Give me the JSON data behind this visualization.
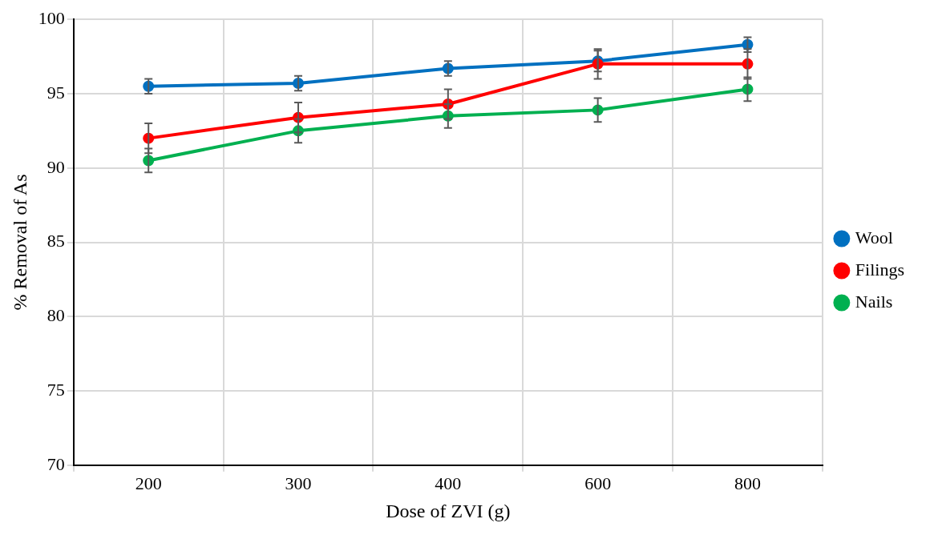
{
  "chart_data": {
    "type": "line",
    "xlabel": "Dose of ZVI (g)",
    "ylabel": "% Removal of As",
    "categories": [
      "200",
      "300",
      "400",
      "600",
      "800"
    ],
    "ylim": [
      70,
      100
    ],
    "yticks": [
      70,
      75,
      80,
      85,
      90,
      95,
      100
    ],
    "grid": true,
    "legend": "right",
    "marker": "circle",
    "line_style": "solid",
    "series": [
      {
        "name": "Wool",
        "color": "#0070c0",
        "values": [
          95.5,
          95.7,
          96.7,
          97.2,
          98.3
        ],
        "errors": [
          0.5,
          0.5,
          0.5,
          0.7,
          0.5
        ]
      },
      {
        "name": "Filings",
        "color": "#ff0000",
        "values": [
          92.0,
          93.4,
          94.3,
          97.0,
          97.0
        ],
        "errors": [
          1.0,
          1.0,
          1.0,
          1.0,
          1.0
        ]
      },
      {
        "name": "Nails",
        "color": "#00b050",
        "values": [
          90.5,
          92.5,
          93.5,
          93.9,
          95.3
        ],
        "errors": [
          0.8,
          0.8,
          0.8,
          0.8,
          0.8
        ]
      }
    ]
  }
}
